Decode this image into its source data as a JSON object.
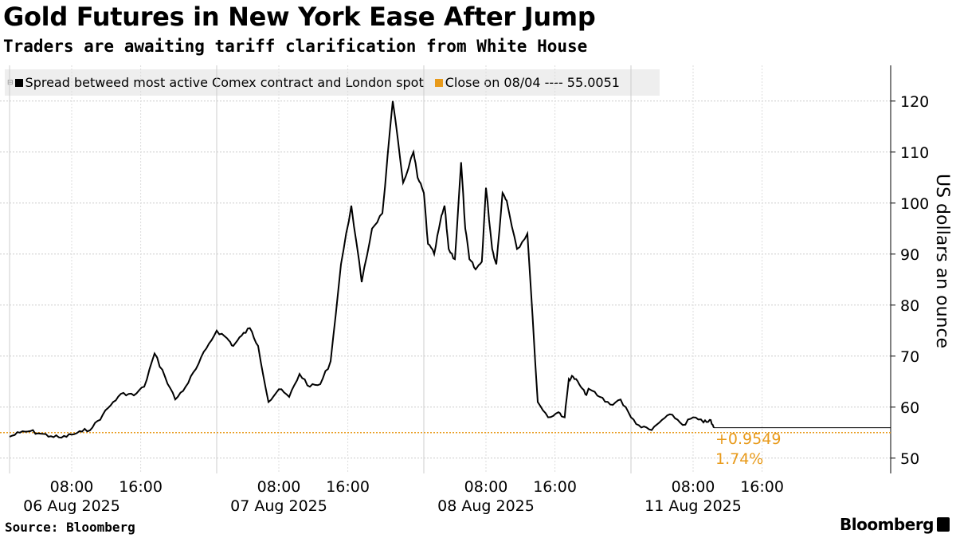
{
  "title": "Gold Futures in New York Ease After Jump",
  "subtitle": "Traders are awaiting tariff clarification from White House",
  "legend": {
    "series_label": "Spread betweed most active Comex contract and London spot",
    "close_label": "Close on 08/04 ---- 55.0051",
    "series_color": "#000000",
    "close_color": "#e89a1a"
  },
  "source": "Source: Bloomberg",
  "brand": "Bloomberg",
  "brand_icon": "bloomberg-terminal-icon",
  "chart_data": {
    "type": "line",
    "ylabel": "US dollars an ounce",
    "ylim": [
      47,
      127
    ],
    "yticks": [
      50,
      60,
      70,
      80,
      90,
      100,
      110,
      120
    ],
    "grid": true,
    "legend_position": "top-left",
    "x_labels": [
      {
        "time": "08:00",
        "date": "06 Aug 2025",
        "x": 0.3
      },
      {
        "time": "16:00",
        "date": "",
        "x": 0.633
      },
      {
        "time": "08:00",
        "date": "07 Aug 2025",
        "x": 1.3
      },
      {
        "time": "16:00",
        "date": "",
        "x": 1.633
      },
      {
        "time": "08:00",
        "date": "08 Aug 2025",
        "x": 2.3
      },
      {
        "time": "16:00",
        "date": "",
        "x": 2.633
      },
      {
        "time": "08:00",
        "date": "11 Aug 2025",
        "x": 3.3
      },
      {
        "time": "16:00",
        "date": "",
        "x": 3.633
      }
    ],
    "close_reference": 55.0051,
    "annotations": [
      "+0.9549",
      "1.74%"
    ],
    "series": [
      {
        "color": "#000000",
        "x": [
          0.0,
          0.05,
          0.1,
          0.15,
          0.2,
          0.25,
          0.3,
          0.35,
          0.4,
          0.45,
          0.5,
          0.55,
          0.6,
          0.65,
          0.7,
          0.75,
          0.8,
          0.85,
          0.9,
          0.95,
          1.0,
          1.05,
          1.08,
          1.12,
          1.16,
          1.2,
          1.25,
          1.3,
          1.35,
          1.4,
          1.45,
          1.5,
          1.55,
          1.6,
          1.65,
          1.7,
          1.75,
          1.8,
          1.85,
          1.9,
          1.95,
          1.97,
          2.0,
          2.02,
          2.05,
          2.08,
          2.1,
          2.12,
          2.15,
          2.18,
          2.2,
          2.22,
          2.25,
          2.28,
          2.3,
          2.33,
          2.35,
          2.38,
          2.4,
          2.45,
          2.5,
          2.55,
          2.6,
          2.65,
          2.68,
          2.7,
          2.72,
          2.75,
          2.78,
          2.8,
          2.85,
          2.9,
          2.95,
          3.0,
          3.05,
          3.1,
          3.15,
          3.2,
          3.25,
          3.3,
          3.35,
          3.38,
          3.4
        ],
        "values": [
          54.2,
          55.0,
          55.3,
          54.8,
          54.3,
          54.0,
          54.6,
          55.2,
          56.0,
          58.5,
          61.0,
          62.8,
          62.3,
          64.0,
          70.5,
          66.0,
          61.5,
          64.0,
          67.5,
          71.5,
          75.0,
          73.5,
          72.0,
          74.0,
          75.5,
          72.0,
          61.0,
          63.5,
          62.0,
          66.5,
          64.0,
          64.5,
          69.0,
          88.0,
          99.5,
          84.5,
          95.0,
          98.0,
          120.0,
          104.0,
          110.0,
          105.0,
          102.0,
          92.0,
          90.0,
          96.5,
          99.5,
          91.0,
          89.0,
          108.0,
          95.0,
          89.0,
          87.0,
          88.5,
          103.0,
          91.0,
          88.0,
          102.0,
          100.5,
          91.0,
          94.0,
          61.0,
          58.0,
          59.0,
          58.0,
          65.5,
          66.0,
          64.5,
          62.5,
          63.5,
          62.0,
          60.5,
          61.5,
          58.0,
          56.0,
          55.5,
          57.5,
          58.5,
          56.5,
          58.0,
          57.0,
          57.5,
          55.96
        ]
      }
    ]
  }
}
